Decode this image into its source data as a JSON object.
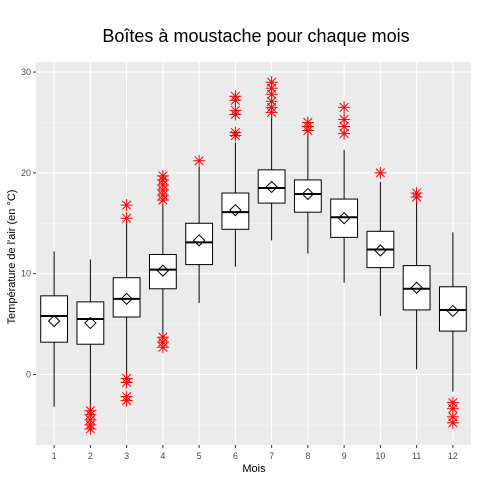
{
  "chart_data": {
    "type": "boxplot",
    "title": "Boîtes à moustache pour chaque mois",
    "xlabel": "Mois",
    "ylabel": "Température de l'air (en °C)",
    "categories": [
      "1",
      "2",
      "3",
      "4",
      "5",
      "6",
      "7",
      "8",
      "9",
      "10",
      "11",
      "12"
    ],
    "ylim": [
      -7,
      31
    ],
    "yticks": [
      0,
      10,
      20,
      30
    ],
    "grid": true,
    "colors": {
      "panel": "#ebebeb",
      "grid_major": "#ffffff",
      "grid_minor": "#f5f5f5",
      "outlier": "#ff0000",
      "box": "#000000"
    },
    "boxes": [
      {
        "month": "1",
        "whisker_low": -3.2,
        "q1": 3.2,
        "median": 5.8,
        "q3": 7.8,
        "whisker_high": 12.2,
        "mean": 5.3,
        "outliers": []
      },
      {
        "month": "2",
        "whisker_low": -3.5,
        "q1": 3.0,
        "median": 5.5,
        "q3": 7.2,
        "whisker_high": 11.4,
        "mean": 5.1,
        "outliers": [
          -3.6,
          -4.0,
          -4.5,
          -5.0,
          -5.4
        ]
      },
      {
        "month": "3",
        "whisker_low": -0.3,
        "q1": 5.7,
        "median": 7.5,
        "q3": 9.6,
        "whisker_high": 15.2,
        "mean": 7.5,
        "outliers": [
          -0.4,
          -0.8,
          -2.2,
          -2.6,
          15.5,
          16.8
        ]
      },
      {
        "month": "4",
        "whisker_low": 3.5,
        "q1": 8.5,
        "median": 10.4,
        "q3": 11.9,
        "whisker_high": 16.9,
        "mean": 10.3,
        "outliers": [
          2.7,
          3.2,
          3.7,
          17.3,
          17.8,
          18.3,
          18.8,
          19.3,
          19.7
        ]
      },
      {
        "month": "5",
        "whisker_low": 7.1,
        "q1": 10.9,
        "median": 13.1,
        "q3": 15.0,
        "whisker_high": 20.6,
        "mean": 13.3,
        "outliers": [
          21.2
        ]
      },
      {
        "month": "6",
        "whisker_low": 10.7,
        "q1": 14.4,
        "median": 16.1,
        "q3": 18.0,
        "whisker_high": 23.0,
        "mean": 16.3,
        "outliers": [
          23.7,
          24.0,
          25.8,
          26.2,
          27.2,
          27.6
        ]
      },
      {
        "month": "7",
        "whisker_low": 13.3,
        "q1": 17.0,
        "median": 18.5,
        "q3": 20.3,
        "whisker_high": 25.7,
        "mean": 18.6,
        "outliers": [
          26.0,
          26.5,
          27.1,
          27.8,
          28.4,
          29.0
        ]
      },
      {
        "month": "8",
        "whisker_low": 12.0,
        "q1": 16.1,
        "median": 17.9,
        "q3": 19.3,
        "whisker_high": 24.1,
        "mean": 17.9,
        "outliers": [
          24.2,
          24.6,
          25.0
        ]
      },
      {
        "month": "9",
        "whisker_low": 9.1,
        "q1": 13.6,
        "median": 15.6,
        "q3": 17.4,
        "whisker_high": 22.3,
        "mean": 15.5,
        "outliers": [
          23.9,
          24.6,
          25.3,
          26.5
        ]
      },
      {
        "month": "10",
        "whisker_low": 5.8,
        "q1": 10.6,
        "median": 12.4,
        "q3": 14.2,
        "whisker_high": 19.1,
        "mean": 12.3,
        "outliers": [
          20.0
        ]
      },
      {
        "month": "11",
        "whisker_low": 0.5,
        "q1": 6.4,
        "median": 8.5,
        "q3": 10.8,
        "whisker_high": 17.2,
        "mean": 8.6,
        "outliers": [
          17.6,
          18.0
        ]
      },
      {
        "month": "12",
        "whisker_low": -1.7,
        "q1": 4.3,
        "median": 6.4,
        "q3": 8.7,
        "whisker_high": 14.1,
        "mean": 6.3,
        "outliers": [
          -2.8,
          -3.4,
          -4.2,
          -4.8
        ]
      }
    ]
  }
}
